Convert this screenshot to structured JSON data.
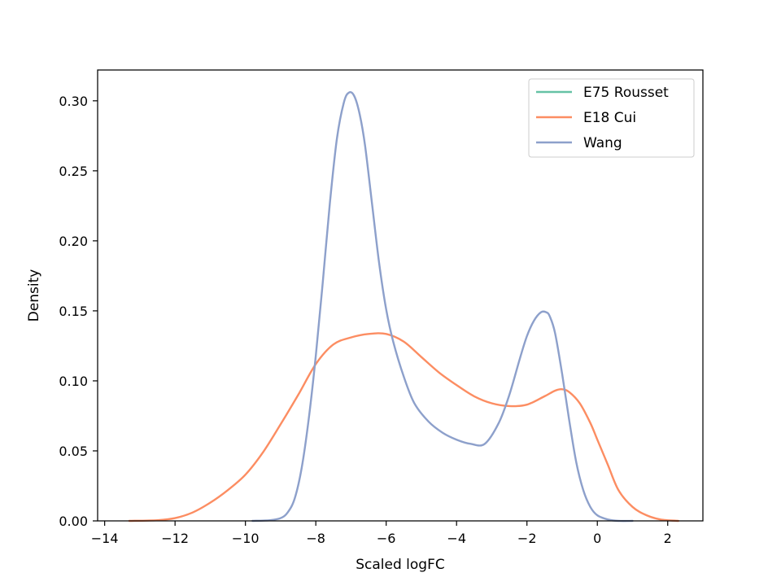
{
  "chart_data": {
    "type": "line",
    "title": "",
    "xlabel": "Scaled logFC",
    "ylabel": "Density",
    "xlim": [
      -14.2,
      3.0
    ],
    "ylim": [
      0,
      0.322
    ],
    "xticks": [
      -14,
      -12,
      -10,
      -8,
      -6,
      -4,
      -2,
      0,
      2
    ],
    "xtick_labels": [
      "−14",
      "−12",
      "−10",
      "−8",
      "−6",
      "−4",
      "−2",
      "0",
      "2"
    ],
    "yticks": [
      0.0,
      0.05,
      0.1,
      0.15,
      0.2,
      0.25,
      0.3
    ],
    "ytick_labels": [
      "0.00",
      "0.05",
      "0.10",
      "0.15",
      "0.20",
      "0.25",
      "0.30"
    ],
    "grid": false,
    "legend_position": "top-right",
    "series": [
      {
        "name": "E75 Rousset",
        "color": "#66c2a5",
        "x": [],
        "y": []
      },
      {
        "name": "E18 Cui",
        "color": "#fc8d62",
        "x": [
          -13.3,
          -12.5,
          -12.0,
          -11.5,
          -11.0,
          -10.5,
          -10.0,
          -9.5,
          -9.0,
          -8.5,
          -8.0,
          -7.5,
          -7.0,
          -6.5,
          -6.0,
          -5.5,
          -5.0,
          -4.5,
          -4.0,
          -3.5,
          -3.0,
          -2.5,
          -2.0,
          -1.5,
          -1.2,
          -1.0,
          -0.8,
          -0.5,
          -0.2,
          0.0,
          0.3,
          0.6,
          1.0,
          1.4,
          1.8,
          2.3
        ],
        "y": [
          0.0,
          0.0005,
          0.002,
          0.006,
          0.013,
          0.022,
          0.033,
          0.049,
          0.069,
          0.09,
          0.112,
          0.126,
          0.131,
          0.1335,
          0.1335,
          0.128,
          0.117,
          0.106,
          0.097,
          0.089,
          0.084,
          0.082,
          0.083,
          0.089,
          0.093,
          0.094,
          0.092,
          0.084,
          0.07,
          0.058,
          0.04,
          0.022,
          0.01,
          0.004,
          0.001,
          0.0
        ]
      },
      {
        "name": "Wang",
        "color": "#8da0cb",
        "x": [
          -9.8,
          -9.3,
          -9.0,
          -8.8,
          -8.6,
          -8.4,
          -8.2,
          -8.0,
          -7.8,
          -7.6,
          -7.4,
          -7.2,
          -7.05,
          -6.9,
          -6.75,
          -6.6,
          -6.4,
          -6.2,
          -6.0,
          -5.8,
          -5.5,
          -5.2,
          -4.8,
          -4.4,
          -4.0,
          -3.6,
          -3.2,
          -2.8,
          -2.5,
          -2.2,
          -2.0,
          -1.8,
          -1.6,
          -1.45,
          -1.35,
          -1.2,
          -1.0,
          -0.8,
          -0.6,
          -0.4,
          -0.2,
          0.0,
          0.3,
          0.6,
          1.0
        ],
        "y": [
          0.0,
          0.0005,
          0.002,
          0.006,
          0.016,
          0.038,
          0.073,
          0.118,
          0.171,
          0.227,
          0.273,
          0.299,
          0.306,
          0.303,
          0.29,
          0.268,
          0.226,
          0.184,
          0.151,
          0.128,
          0.103,
          0.084,
          0.071,
          0.063,
          0.058,
          0.055,
          0.055,
          0.07,
          0.09,
          0.116,
          0.132,
          0.143,
          0.149,
          0.149,
          0.146,
          0.134,
          0.105,
          0.072,
          0.042,
          0.022,
          0.01,
          0.004,
          0.001,
          0.0,
          0.0
        ]
      }
    ]
  }
}
